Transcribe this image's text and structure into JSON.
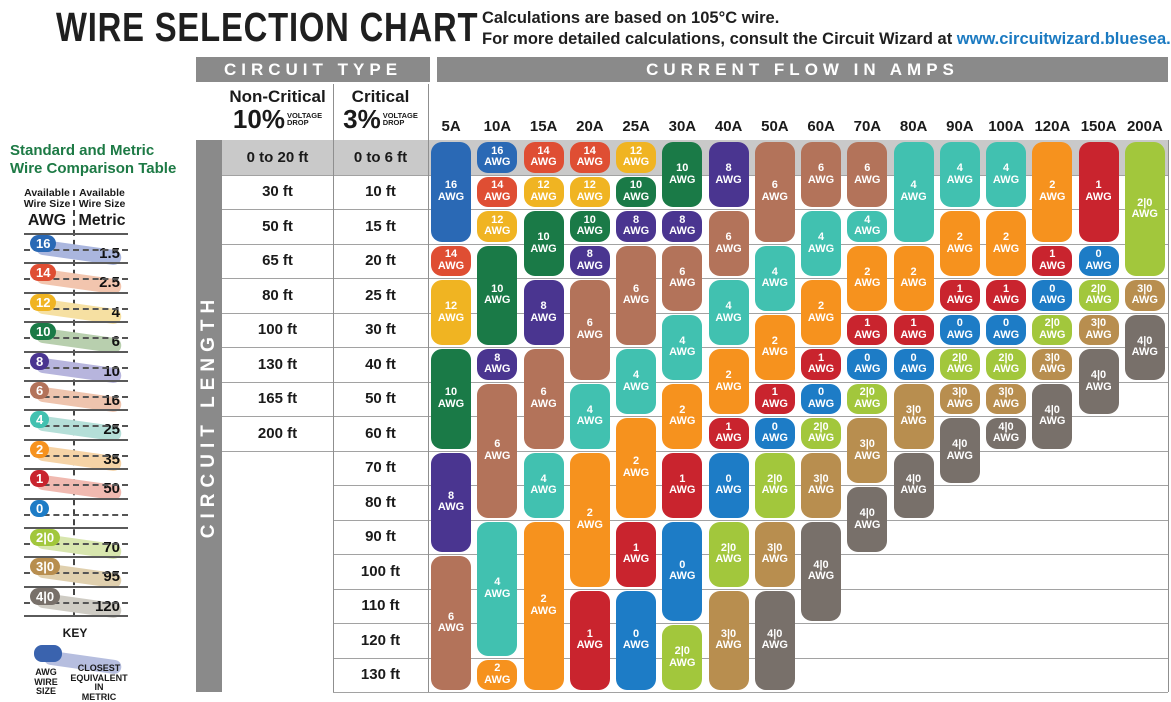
{
  "header": {
    "title": "WIRE SELECTION CHART",
    "subtitle_line1": "Calculations are based on 105°C wire.",
    "subtitle_line2": "For more detailed calculations, consult the Circuit Wizard at ",
    "subtitle_link": "www.circuitwizard.bluesea.com"
  },
  "table": {
    "circuit_type_header": "CIRCUIT TYPE",
    "amps_header": "CURRENT FLOW IN AMPS",
    "non_critical_label": "Non-Critical",
    "non_critical_pct": "10%",
    "critical_label": "Critical",
    "critical_pct": "3%",
    "voltage_drop_line1": "VOLTAGE",
    "voltage_drop_line2": "DROP",
    "length_axis": "CIRCUIT LENGTH"
  },
  "sidebar": {
    "title_line1": "Standard and Metric",
    "title_line2": "Wire Comparison Table",
    "left_header": "Available Wire Size",
    "left_unit": "AWG",
    "right_header": "Available Wire Size",
    "right_unit": "Metric",
    "rows": [
      {
        "awg": "16",
        "metric": "1.5"
      },
      {
        "awg": "14",
        "metric": "2.5"
      },
      {
        "awg": "12",
        "metric": "4"
      },
      {
        "awg": "10",
        "metric": "6"
      },
      {
        "awg": "8",
        "metric": "10"
      },
      {
        "awg": "6",
        "metric": "16"
      },
      {
        "awg": "4",
        "metric": "25"
      },
      {
        "awg": "2",
        "metric": "35"
      },
      {
        "awg": "1",
        "metric": "50"
      },
      {
        "awg": "0",
        "metric": ""
      },
      {
        "awg": "2|0",
        "metric": "70"
      },
      {
        "awg": "3|0",
        "metric": "95"
      },
      {
        "awg": "4|0",
        "metric": "120"
      }
    ],
    "key": {
      "label": "KEY",
      "left_caption": "AWG WIRE SIZE",
      "right_caption": "CLOSEST EQUIVALENT IN METRIC"
    }
  },
  "chart_data": {
    "type": "table",
    "title": "WIRE SELECTION CHART",
    "columns_axis": "CURRENT FLOW IN AMPS",
    "rows_axis": "CIRCUIT LENGTH",
    "amp_columns": [
      "5A",
      "10A",
      "15A",
      "20A",
      "25A",
      "30A",
      "40A",
      "50A",
      "60A",
      "70A",
      "80A",
      "90A",
      "100A",
      "120A",
      "150A",
      "200A"
    ],
    "length_rows": [
      {
        "non_critical": "0 to 20 ft",
        "critical": "0 to 6 ft"
      },
      {
        "non_critical": "30 ft",
        "critical": "10 ft"
      },
      {
        "non_critical": "50 ft",
        "critical": "15 ft"
      },
      {
        "non_critical": "65 ft",
        "critical": "20 ft"
      },
      {
        "non_critical": "80 ft",
        "critical": "25 ft"
      },
      {
        "non_critical": "100 ft",
        "critical": "30 ft"
      },
      {
        "non_critical": "130 ft",
        "critical": "40 ft"
      },
      {
        "non_critical": "165 ft",
        "critical": "50 ft"
      },
      {
        "non_critical": "200 ft",
        "critical": "60 ft"
      },
      {
        "non_critical": "",
        "critical": "70 ft"
      },
      {
        "non_critical": "",
        "critical": "80 ft"
      },
      {
        "non_critical": "",
        "critical": "90 ft"
      },
      {
        "non_critical": "",
        "critical": "100 ft"
      },
      {
        "non_critical": "",
        "critical": "110 ft"
      },
      {
        "non_critical": "",
        "critical": "120 ft"
      },
      {
        "non_critical": "",
        "critical": "130 ft"
      }
    ],
    "awg_unit_label": "AWG",
    "wire_runs": {
      "5A": [
        {
          "awg": "16",
          "start": 1,
          "span": 3
        },
        {
          "awg": "14",
          "start": 4,
          "span": 1
        },
        {
          "awg": "12",
          "start": 5,
          "span": 2
        },
        {
          "awg": "10",
          "start": 7,
          "span": 3
        },
        {
          "awg": "8",
          "start": 10,
          "span": 3
        },
        {
          "awg": "6",
          "start": 13,
          "span": 4
        }
      ],
      "10A": [
        {
          "awg": "16",
          "start": 1,
          "span": 1
        },
        {
          "awg": "14",
          "start": 2,
          "span": 1
        },
        {
          "awg": "12",
          "start": 3,
          "span": 1
        },
        {
          "awg": "10",
          "start": 4,
          "span": 3
        },
        {
          "awg": "8",
          "start": 7,
          "span": 1
        },
        {
          "awg": "6",
          "start": 8,
          "span": 4
        },
        {
          "awg": "4",
          "start": 12,
          "span": 4
        },
        {
          "awg": "2",
          "start": 16,
          "span": 1
        }
      ],
      "15A": [
        {
          "awg": "14",
          "start": 1,
          "span": 1
        },
        {
          "awg": "12",
          "start": 2,
          "span": 1
        },
        {
          "awg": "10",
          "start": 3,
          "span": 2
        },
        {
          "awg": "8",
          "start": 5,
          "span": 2
        },
        {
          "awg": "6",
          "start": 7,
          "span": 3
        },
        {
          "awg": "4",
          "start": 10,
          "span": 2
        },
        {
          "awg": "2",
          "start": 12,
          "span": 5
        }
      ],
      "20A": [
        {
          "awg": "14",
          "start": 1,
          "span": 1
        },
        {
          "awg": "12",
          "start": 2,
          "span": 1
        },
        {
          "awg": "10",
          "start": 3,
          "span": 1
        },
        {
          "awg": "8",
          "start": 4,
          "span": 1
        },
        {
          "awg": "6",
          "start": 5,
          "span": 3
        },
        {
          "awg": "4",
          "start": 8,
          "span": 2
        },
        {
          "awg": "2",
          "start": 10,
          "span": 4
        },
        {
          "awg": "1",
          "start": 14,
          "span": 3
        }
      ],
      "25A": [
        {
          "awg": "12",
          "start": 1,
          "span": 1
        },
        {
          "awg": "10",
          "start": 2,
          "span": 1
        },
        {
          "awg": "8",
          "start": 3,
          "span": 1
        },
        {
          "awg": "6",
          "start": 4,
          "span": 3
        },
        {
          "awg": "4",
          "start": 7,
          "span": 2
        },
        {
          "awg": "2",
          "start": 9,
          "span": 3
        },
        {
          "awg": "1",
          "start": 12,
          "span": 2
        },
        {
          "awg": "0",
          "start": 14,
          "span": 3
        }
      ],
      "30A": [
        {
          "awg": "10",
          "start": 1,
          "span": 2
        },
        {
          "awg": "8",
          "start": 3,
          "span": 1
        },
        {
          "awg": "6",
          "start": 4,
          "span": 2
        },
        {
          "awg": "4",
          "start": 6,
          "span": 2
        },
        {
          "awg": "2",
          "start": 8,
          "span": 2
        },
        {
          "awg": "1",
          "start": 10,
          "span": 2
        },
        {
          "awg": "0",
          "start": 12,
          "span": 3
        },
        {
          "awg": "2|0",
          "start": 15,
          "span": 2
        }
      ],
      "40A": [
        {
          "awg": "8",
          "start": 1,
          "span": 2
        },
        {
          "awg": "6",
          "start": 3,
          "span": 2
        },
        {
          "awg": "4",
          "start": 5,
          "span": 2
        },
        {
          "awg": "2",
          "start": 7,
          "span": 2
        },
        {
          "awg": "1",
          "start": 9,
          "span": 1
        },
        {
          "awg": "0",
          "start": 10,
          "span": 2
        },
        {
          "awg": "2|0",
          "start": 12,
          "span": 2
        },
        {
          "awg": "3|0",
          "start": 14,
          "span": 3
        }
      ],
      "50A": [
        {
          "awg": "6",
          "start": 1,
          "span": 3
        },
        {
          "awg": "4",
          "start": 4,
          "span": 2
        },
        {
          "awg": "2",
          "start": 6,
          "span": 2
        },
        {
          "awg": "1",
          "start": 8,
          "span": 1
        },
        {
          "awg": "0",
          "start": 9,
          "span": 1
        },
        {
          "awg": "2|0",
          "start": 10,
          "span": 2
        },
        {
          "awg": "3|0",
          "start": 12,
          "span": 2
        },
        {
          "awg": "4|0",
          "start": 14,
          "span": 3
        }
      ],
      "60A": [
        {
          "awg": "6",
          "start": 1,
          "span": 2
        },
        {
          "awg": "4",
          "start": 3,
          "span": 2
        },
        {
          "awg": "2",
          "start": 5,
          "span": 2
        },
        {
          "awg": "1",
          "start": 7,
          "span": 1
        },
        {
          "awg": "0",
          "start": 8,
          "span": 1
        },
        {
          "awg": "2|0",
          "start": 9,
          "span": 1
        },
        {
          "awg": "3|0",
          "start": 10,
          "span": 2
        },
        {
          "awg": "4|0",
          "start": 12,
          "span": 3
        }
      ],
      "70A": [
        {
          "awg": "6",
          "start": 1,
          "span": 2
        },
        {
          "awg": "4",
          "start": 3,
          "span": 1
        },
        {
          "awg": "2",
          "start": 4,
          "span": 2
        },
        {
          "awg": "1",
          "start": 6,
          "span": 1
        },
        {
          "awg": "0",
          "start": 7,
          "span": 1
        },
        {
          "awg": "2|0",
          "start": 8,
          "span": 1
        },
        {
          "awg": "3|0",
          "start": 9,
          "span": 2
        },
        {
          "awg": "4|0",
          "start": 11,
          "span": 2
        }
      ],
      "80A": [
        {
          "awg": "4",
          "start": 1,
          "span": 3
        },
        {
          "awg": "2",
          "start": 4,
          "span": 2
        },
        {
          "awg": "1",
          "start": 6,
          "span": 1
        },
        {
          "awg": "0",
          "start": 7,
          "span": 1
        },
        {
          "awg": "3|0",
          "start": 8,
          "span": 2
        },
        {
          "awg": "4|0",
          "start": 10,
          "span": 2
        }
      ],
      "90A": [
        {
          "awg": "4",
          "start": 1,
          "span": 2
        },
        {
          "awg": "2",
          "start": 3,
          "span": 2
        },
        {
          "awg": "1",
          "start": 5,
          "span": 1
        },
        {
          "awg": "0",
          "start": 6,
          "span": 1
        },
        {
          "awg": "2|0",
          "start": 7,
          "span": 1
        },
        {
          "awg": "3|0",
          "start": 8,
          "span": 1
        },
        {
          "awg": "4|0",
          "start": 9,
          "span": 2
        }
      ],
      "100A": [
        {
          "awg": "4",
          "start": 1,
          "span": 2
        },
        {
          "awg": "2",
          "start": 3,
          "span": 2
        },
        {
          "awg": "1",
          "start": 5,
          "span": 1
        },
        {
          "awg": "0",
          "start": 6,
          "span": 1
        },
        {
          "awg": "2|0",
          "start": 7,
          "span": 1
        },
        {
          "awg": "3|0",
          "start": 8,
          "span": 1
        },
        {
          "awg": "4|0",
          "start": 9,
          "span": 1
        }
      ],
      "120A": [
        {
          "awg": "2",
          "start": 1,
          "span": 3
        },
        {
          "awg": "1",
          "start": 4,
          "span": 1
        },
        {
          "awg": "0",
          "start": 5,
          "span": 1
        },
        {
          "awg": "2|0",
          "start": 6,
          "span": 1
        },
        {
          "awg": "3|0",
          "start": 7,
          "span": 1
        },
        {
          "awg": "4|0",
          "start": 8,
          "span": 2
        }
      ],
      "150A": [
        {
          "awg": "1",
          "start": 1,
          "span": 3
        },
        {
          "awg": "0",
          "start": 4,
          "span": 1
        },
        {
          "awg": "2|0",
          "start": 5,
          "span": 1
        },
        {
          "awg": "3|0",
          "start": 6,
          "span": 1
        },
        {
          "awg": "4|0",
          "start": 7,
          "span": 2
        }
      ],
      "200A": [
        {
          "awg": "2|0",
          "start": 1,
          "span": 4
        },
        {
          "awg": "3|0",
          "start": 5,
          "span": 1
        },
        {
          "awg": "4|0",
          "start": 6,
          "span": 2
        }
      ]
    }
  },
  "colors": {
    "awg": {
      "16": "#2a69b5",
      "14": "#df4e33",
      "12": "#f0b422",
      "10": "#1a7a47",
      "8": "#4a3590",
      "6": "#b3735a",
      "4": "#41c1b0",
      "2": "#f6921e",
      "1": "#c9242e",
      "0": "#1d7cc6",
      "2|0": "#a2c73c",
      "3|0": "#b88e4f",
      "4|0": "#78706a"
    },
    "awg_tint": {
      "16": "#aab6de",
      "14": "#f2c5ae",
      "12": "#f6e0a2",
      "10": "#b8cfae",
      "8": "#b7b5dd",
      "6": "#eec4ae",
      "4": "#b5dfd8",
      "2": "#f5d3a6",
      "1": "#f0b9b0",
      "0": "",
      "2|0": "#d8e6ae",
      "3|0": "#e0d0ae",
      "4|0": "#cfccc4"
    },
    "header_bar": "#8a8a8a",
    "row_band": "#c9c9c9",
    "grid_line": "#a2a2a2",
    "link": "#1b7ac1",
    "sidebar_title": "#1d7a45",
    "key_chip": "#3a63ae",
    "key_swoosh": "#b6bedf"
  }
}
